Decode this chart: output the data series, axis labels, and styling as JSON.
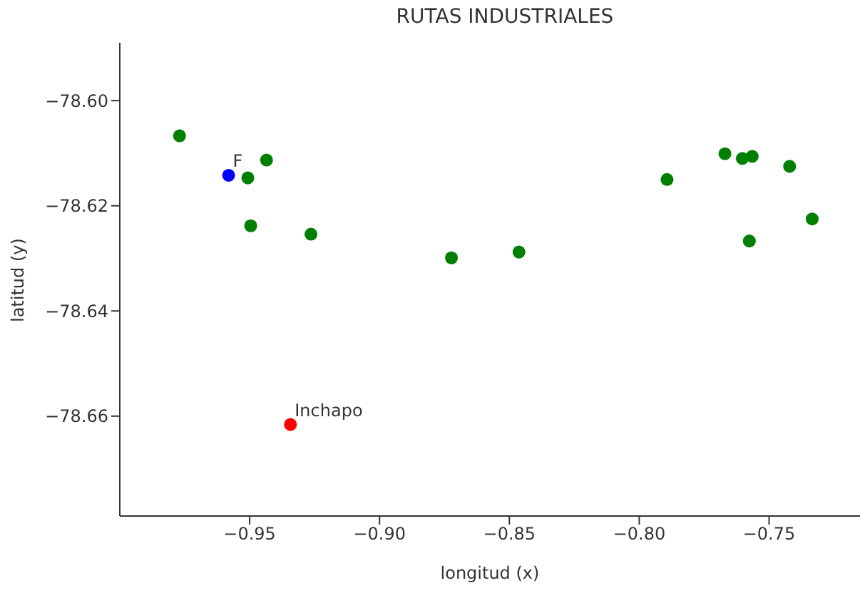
{
  "chart_data": {
    "type": "scatter",
    "title": "RUTAS INDUSTRIALES",
    "xlabel": "longitud (x)",
    "ylabel": "latitud (y)",
    "marker": "circle",
    "grid": false,
    "legend": false,
    "xlim": [
      -1.0,
      -0.715
    ],
    "ylim": [
      -78.679,
      -78.589
    ],
    "xticks": [
      {
        "value": -0.95,
        "label": "−0.95"
      },
      {
        "value": -0.9,
        "label": "−0.90"
      },
      {
        "value": -0.85,
        "label": "−0.85"
      },
      {
        "value": -0.8,
        "label": "−0.80"
      },
      {
        "value": -0.75,
        "label": "−0.75"
      }
    ],
    "yticks": [
      {
        "value": -78.6,
        "label": "−78.60"
      },
      {
        "value": -78.62,
        "label": "−78.62"
      },
      {
        "value": -78.64,
        "label": "−78.64"
      },
      {
        "value": -78.66,
        "label": "−78.66"
      }
    ],
    "series": [
      {
        "color": "#008000",
        "x": [
          -0.977,
          -0.9435,
          -0.9507,
          -0.9496,
          -0.9264,
          -0.8723,
          -0.8463,
          -0.7893,
          -0.767,
          -0.7603,
          -0.7565,
          -0.7421,
          -0.7334,
          -0.7576
        ],
        "values": [
          -78.6067,
          -78.6113,
          -78.6147,
          -78.6238,
          -78.6254,
          -78.6299,
          -78.6288,
          -78.615,
          -78.6101,
          -78.611,
          -78.6106,
          -78.6125,
          -78.6225,
          -78.6267
        ]
      },
      {
        "color": "#0000ff",
        "x": [
          -0.9581
        ],
        "values": [
          -78.6142
        ]
      },
      {
        "color": "#ff0000",
        "x": [
          -0.9343
        ],
        "values": [
          -78.6616
        ]
      }
    ],
    "annotations": [
      {
        "text": "F",
        "x": -0.9581,
        "y": -78.6142
      },
      {
        "text": "Inchapo",
        "x": -0.9343,
        "y": -78.6616
      }
    ]
  }
}
